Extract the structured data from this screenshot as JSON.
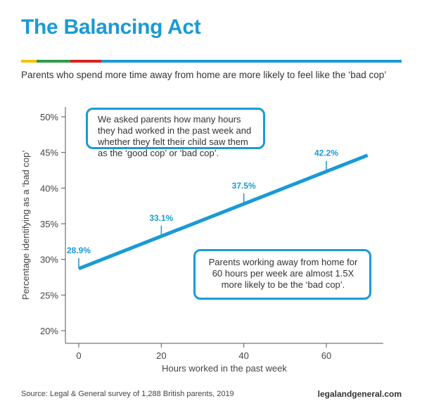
{
  "title": "The Balancing Act",
  "subtitle": "Parents who spend more time away from home are more likely to feel like the ‘bad cop’",
  "accent_color": "#1a9ad6",
  "color_bar": [
    "#f5c400",
    "#2e9b47",
    "#d6221e",
    "#1a9ad6"
  ],
  "callouts": {
    "method": "We asked parents how many hours they had worked in the past week and whether they felt their child saw them as the ‘good cop’ or ‘bad cop’.",
    "finding": "Parents working away from home for 60 hours per week are almost 1.5X more likely to be the ‘bad cop’."
  },
  "footer": {
    "source": "Source: Legal & General survey of 1,288 British parents, 2019",
    "site": "legalandgeneral.com"
  },
  "chart_data": {
    "type": "line",
    "title": "The Balancing Act",
    "xlabel": "Hours worked in the past week",
    "ylabel": "Percentage identifying as a ‘bad cop’",
    "xlim": [
      -3,
      70
    ],
    "ylim": [
      19.5,
      51
    ],
    "x_ticks": [
      0,
      20,
      40,
      60
    ],
    "y_ticks": [
      20,
      25,
      30,
      35,
      40,
      45,
      50
    ],
    "y_tick_format": "%",
    "grid": false,
    "trend_line": {
      "x": [
        0,
        70
      ],
      "y": [
        28.7,
        44.6
      ]
    },
    "points": [
      {
        "x": 0,
        "y": 28.9,
        "label": "28.9%"
      },
      {
        "x": 20,
        "y": 33.1,
        "label": "33.1%"
      },
      {
        "x": 40,
        "y": 37.5,
        "label": "37.5%"
      },
      {
        "x": 60,
        "y": 42.2,
        "label": "42.2%"
      }
    ]
  }
}
